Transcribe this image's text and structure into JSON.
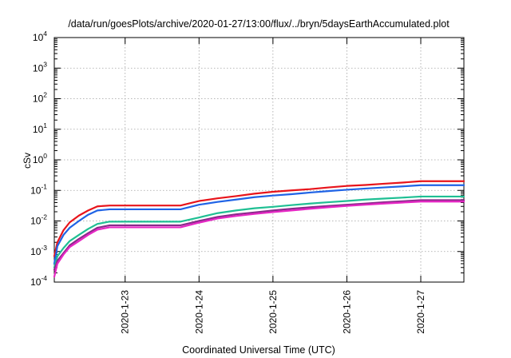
{
  "chart_data": {
    "type": "line",
    "title": "/data/run/goesPlots/archive/2020-01-27/13:00/flux/../bryn/5daysEarthAccumulated.plot",
    "xlabel": "Coordinated Universal Time (UTC)",
    "ylabel": "cSv",
    "y_scale": "log",
    "ylim": [
      0.0001,
      10000
    ],
    "y_ticks": [
      {
        "base": "10",
        "exp": "-4",
        "value": 0.0001
      },
      {
        "base": "10",
        "exp": "-3",
        "value": 0.001
      },
      {
        "base": "10",
        "exp": "-2",
        "value": 0.01
      },
      {
        "base": "10",
        "exp": "-1",
        "value": 0.1
      },
      {
        "base": "10",
        "exp": "0",
        "value": 1
      },
      {
        "base": "10",
        "exp": "1",
        "value": 10
      },
      {
        "base": "10",
        "exp": "2",
        "value": 100
      },
      {
        "base": "10",
        "exp": "3",
        "value": 1000
      },
      {
        "base": "10",
        "exp": "4",
        "value": 10000
      }
    ],
    "xlim": [
      "2020-01-22T01:00",
      "2020-01-27T14:00"
    ],
    "x_ticks": [
      {
        "label": "2020-1-23",
        "value": "2020-01-23T00:00"
      },
      {
        "label": "2020-1-24",
        "value": "2020-01-24T00:00"
      },
      {
        "label": "2020-1-25",
        "value": "2020-01-25T00:00"
      },
      {
        "label": "2020-1-26",
        "value": "2020-01-26T00:00"
      },
      {
        "label": "2020-1-27",
        "value": "2020-01-27T00:00"
      }
    ],
    "grid": true,
    "x": [
      "2020-01-22T01:00",
      "2020-01-22T02:00",
      "2020-01-22T04:00",
      "2020-01-22T06:00",
      "2020-01-22T09:00",
      "2020-01-22T12:00",
      "2020-01-22T15:00",
      "2020-01-22T19:00",
      "2020-01-23T06:00",
      "2020-01-23T12:00",
      "2020-01-23T18:00",
      "2020-01-24T00:00",
      "2020-01-24T06:00",
      "2020-01-24T12:00",
      "2020-01-24T18:00",
      "2020-01-25T00:00",
      "2020-01-25T06:00",
      "2020-01-25T12:00",
      "2020-01-25T18:00",
      "2020-01-26T00:00",
      "2020-01-26T06:00",
      "2020-01-26T12:00",
      "2020-01-26T18:00",
      "2020-01-27T00:00",
      "2020-01-27T14:00"
    ],
    "series": [
      {
        "color": "#e8141b",
        "values": [
          0.0007,
          0.002,
          0.005,
          0.009,
          0.015,
          0.022,
          0.03,
          0.032,
          0.032,
          0.032,
          0.032,
          0.045,
          0.055,
          0.065,
          0.078,
          0.09,
          0.1,
          0.11,
          0.125,
          0.14,
          0.15,
          0.165,
          0.18,
          0.2,
          0.2
        ]
      },
      {
        "color": "#1f63e6",
        "values": [
          0.0004,
          0.0015,
          0.0035,
          0.006,
          0.01,
          0.016,
          0.022,
          0.024,
          0.024,
          0.024,
          0.024,
          0.034,
          0.042,
          0.05,
          0.06,
          0.068,
          0.075,
          0.085,
          0.095,
          0.105,
          0.115,
          0.125,
          0.135,
          0.148,
          0.148
        ]
      },
      {
        "color": "#1fbf93",
        "values": [
          0.0003,
          0.0007,
          0.0013,
          0.0022,
          0.0035,
          0.0055,
          0.008,
          0.0095,
          0.0095,
          0.0095,
          0.0095,
          0.013,
          0.018,
          0.022,
          0.026,
          0.029,
          0.033,
          0.037,
          0.041,
          0.045,
          0.05,
          0.054,
          0.058,
          0.063,
          0.063
        ]
      },
      {
        "color": "#8a2a8a",
        "values": [
          0.00025,
          0.0005,
          0.0009,
          0.0016,
          0.0026,
          0.004,
          0.006,
          0.0072,
          0.0072,
          0.0072,
          0.0072,
          0.01,
          0.0135,
          0.0165,
          0.019,
          0.022,
          0.025,
          0.028,
          0.031,
          0.034,
          0.037,
          0.041,
          0.044,
          0.048,
          0.048
        ]
      },
      {
        "color": "#e626c4",
        "values": [
          0.00015,
          0.0004,
          0.0008,
          0.0014,
          0.0022,
          0.0035,
          0.0052,
          0.0062,
          0.0062,
          0.0062,
          0.0062,
          0.0088,
          0.012,
          0.0145,
          0.017,
          0.0195,
          0.022,
          0.025,
          0.028,
          0.031,
          0.034,
          0.037,
          0.04,
          0.043,
          0.043
        ]
      }
    ]
  }
}
